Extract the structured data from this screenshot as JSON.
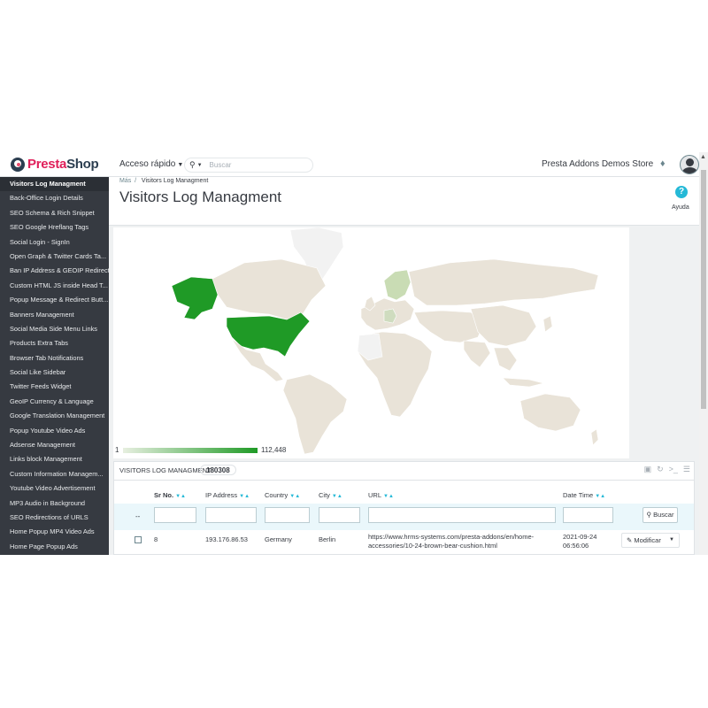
{
  "app": {
    "brand_a": "Presta",
    "brand_b": "Shop"
  },
  "header": {
    "quick_access": "Acceso rápido",
    "search_placeholder": "Buscar",
    "store_name": "Presta Addons Demos Store"
  },
  "sidebar": {
    "items": [
      "Visitors Log Managment",
      "Back-Office Login Details",
      "SEO Schema & Rich Snippet",
      "SEO Google Hreflang Tags",
      "Social Login - SignIn",
      "Open Graph & Twitter Cards Ta...",
      "Ban IP Address & GEOIP Redirect",
      "Custom HTML JS inside Head T...",
      "Popup Message & Redirect Butt...",
      "Banners Management",
      "Social Media Side Menu Links",
      "Products Extra Tabs",
      "Browser Tab Notifications",
      "Social Like Sidebar",
      "Twitter Feeds Widget",
      "GeoIP Currency & Language",
      "Google Translation Management",
      "Popup Youtube Video Ads",
      "Adsense Management",
      "Links block Management",
      "Custom Information Managem...",
      "Youtube Video Advertisement",
      "MP3 Audio in Background",
      "SEO Redirections of URLS",
      "Home Popup MP4 Video Ads",
      "Home Page Popup Ads"
    ]
  },
  "page": {
    "breadcrumb_parent": "Más",
    "breadcrumb_sep": "/",
    "breadcrumb_current": "Visitors Log Managment",
    "title": "Visitors Log Managment",
    "help_label": "Ayuda"
  },
  "map": {
    "legend_min": "1",
    "legend_max": "112,448",
    "color_low": "#e7efe0",
    "color_high": "#1f9a26",
    "color_none": "#e9e3d8",
    "color_nodata": "#f2f2f2"
  },
  "table": {
    "panel_title": "VISITORS LOG MANAGMENT",
    "count": "180308",
    "columns": [
      "Sr No.",
      "IP Address",
      "Country",
      "City",
      "URL",
      "Date Time"
    ],
    "filter_dash": "--",
    "search_button": "Buscar",
    "rows": [
      {
        "sr": "8",
        "ip": "193.176.86.53",
        "country": "Germany",
        "city": "Berlin",
        "url_line1": "https://www.hrms-systems.com/presta-addons/en/home-",
        "url_line2": "accessories/10-24-brown-bear-cushion.html",
        "date": "2021-09-24",
        "time": "06:56:06",
        "action": "Modificar"
      }
    ]
  }
}
